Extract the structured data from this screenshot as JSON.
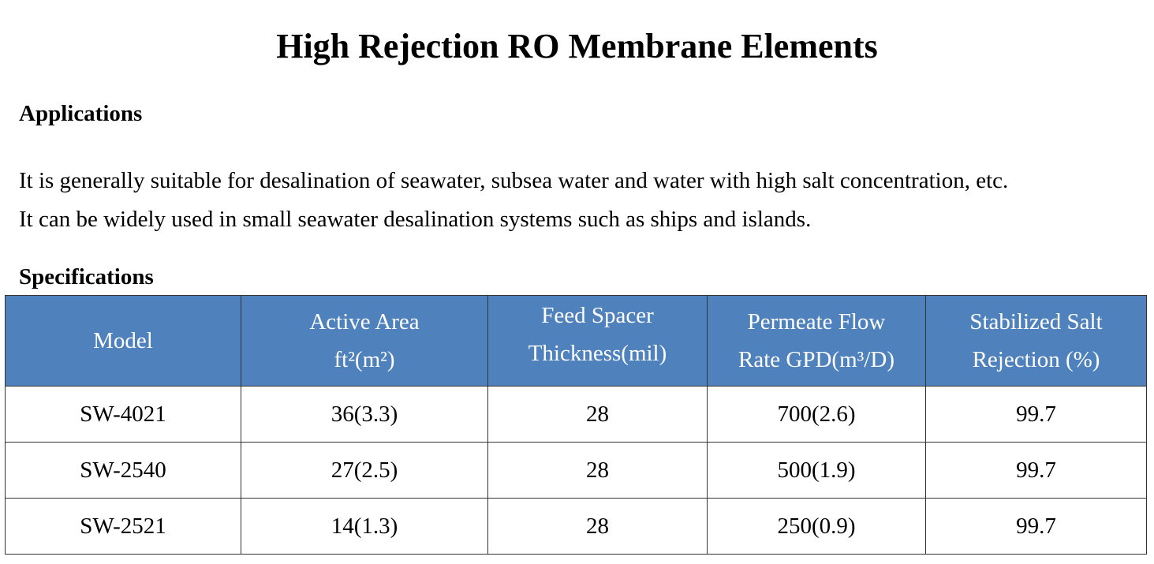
{
  "title": "High Rejection RO Membrane Elements",
  "applications": {
    "heading": "Applications",
    "lines": [
      "It is generally suitable for desalination of seawater, subsea water and water with high salt concentration, etc.",
      "It can be widely used in small seawater desalination systems such as ships and islands."
    ]
  },
  "specifications": {
    "heading": "Specifications",
    "header_color": "#4f81bd",
    "columns": [
      {
        "lines": [
          "Model"
        ]
      },
      {
        "lines": [
          "Active Area",
          "ft²(m²)"
        ]
      },
      {
        "lines": [
          "Feed Spacer",
          "Thickness(mil)"
        ]
      },
      {
        "lines": [
          "Permeate Flow",
          "Rate GPD(m³/D)"
        ]
      },
      {
        "lines": [
          "Stabilized Salt",
          "Rejection (%)"
        ]
      }
    ],
    "rows": [
      [
        "SW-4021",
        "36(3.3)",
        "28",
        "700(2.6)",
        "99.7"
      ],
      [
        "SW-2540",
        "27(2.5)",
        "28",
        "500(1.9)",
        "99.7"
      ],
      [
        "SW-2521",
        "14(1.3)",
        "28",
        "250(0.9)",
        "99.7"
      ]
    ]
  }
}
